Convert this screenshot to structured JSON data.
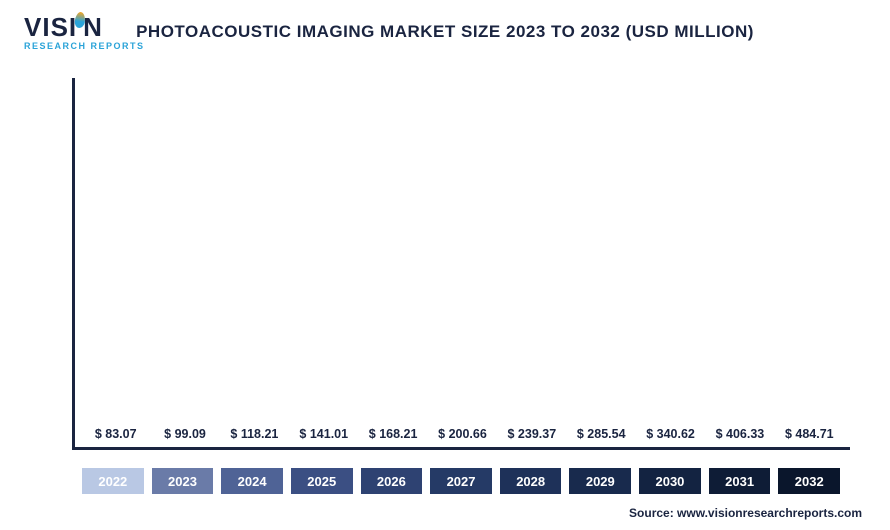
{
  "logo": {
    "main_pre": "VISI",
    "main_post": "N",
    "sub": "RESEARCH REPORTS"
  },
  "title": "PHOTOACOUSTIC IMAGING MARKET SIZE 2023 TO 2032 (USD MILLION)",
  "chart": {
    "type": "bar",
    "ylim": [
      0,
      520
    ],
    "bar_width": 1.0,
    "background_color": "#ffffff",
    "axis_color": "#1a2440",
    "label_color": "#1a2440",
    "label_fontsize": 12.5,
    "xlabel_fontsize": 13,
    "xlabel_text_color": "#ffffff",
    "series": [
      {
        "year": "2022",
        "value": 83.07,
        "label": "$ 83.07",
        "bar_color": "#b9c8e4",
        "xlabel_bg": "#b9c8e4"
      },
      {
        "year": "2023",
        "value": 99.09,
        "label": "$ 99.09",
        "bar_color": "#6a7ba8",
        "xlabel_bg": "#6a7ba8"
      },
      {
        "year": "2024",
        "value": 118.21,
        "label": "$ 118.21",
        "bar_color": "#4f6396",
        "xlabel_bg": "#4f6396"
      },
      {
        "year": "2025",
        "value": 141.01,
        "label": "$ 141.01",
        "bar_color": "#3b4f83",
        "xlabel_bg": "#3b4f83"
      },
      {
        "year": "2026",
        "value": 168.21,
        "label": "$ 168.21",
        "bar_color": "#2e4272",
        "xlabel_bg": "#2e4272"
      },
      {
        "year": "2027",
        "value": 200.66,
        "label": "$ 200.66",
        "bar_color": "#253a66",
        "xlabel_bg": "#253a66"
      },
      {
        "year": "2028",
        "value": 239.37,
        "label": "$ 239.37",
        "bar_color": "#1e3159",
        "xlabel_bg": "#1e3159"
      },
      {
        "year": "2029",
        "value": 285.54,
        "label": "$ 285.54",
        "bar_color": "#182a4d",
        "xlabel_bg": "#182a4d"
      },
      {
        "year": "2030",
        "value": 340.62,
        "label": "$ 340.62",
        "bar_color": "#132341",
        "xlabel_bg": "#132341"
      },
      {
        "year": "2031",
        "value": 406.33,
        "label": "$ 406.33",
        "bar_color": "#0e1c36",
        "xlabel_bg": "#0e1c36"
      },
      {
        "year": "2032",
        "value": 484.71,
        "label": "$ 484.71",
        "bar_color": "#0a162c",
        "xlabel_bg": "#0a162c"
      }
    ]
  },
  "source": "Source: www.visionresearchreports.com"
}
